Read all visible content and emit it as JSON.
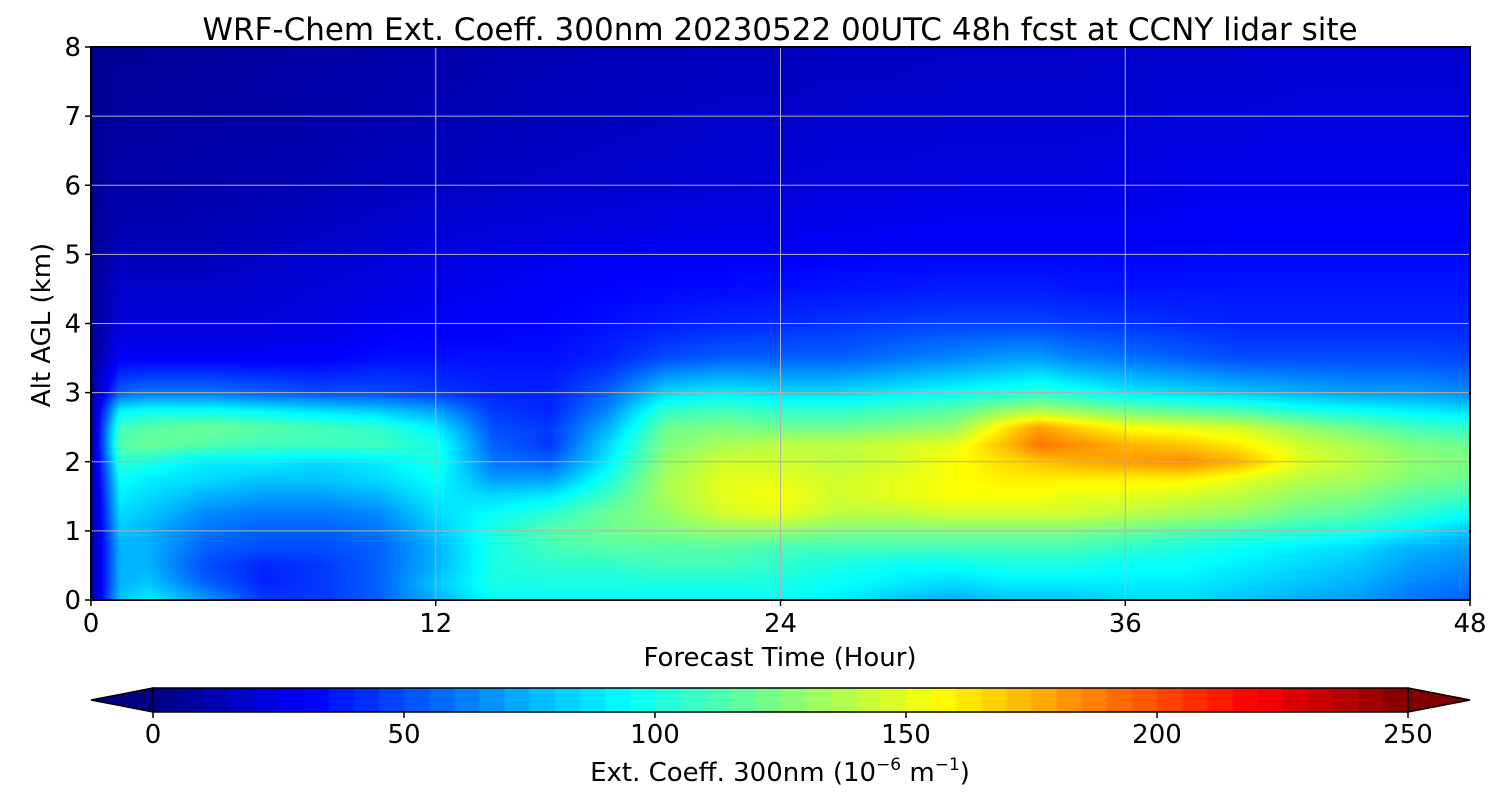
{
  "chart_data": {
    "type": "heatmap",
    "title": "WRF-Chem Ext. Coeff. 300nm  20230522 00UTC 48h fcst at CCNY lidar site",
    "xlabel": "Forecast Time (Hour)",
    "ylabel": "Alt AGL (km)",
    "xlim": [
      0,
      48
    ],
    "ylim": [
      0,
      8
    ],
    "x_ticks": [
      0,
      12,
      24,
      36,
      48
    ],
    "y_ticks": [
      0,
      1,
      2,
      3,
      4,
      5,
      6,
      7,
      8
    ],
    "grid": true,
    "colormap": "jet",
    "colorbar": {
      "label_main": "Ext. Coeff. 300nm  (10",
      "label_exp1": "−6",
      "label_mid": " m",
      "label_exp2": "−1",
      "label_end": ")",
      "range": [
        0,
        250
      ],
      "ticks": [
        0,
        50,
        100,
        150,
        200,
        250
      ],
      "extend": "both",
      "placement": "bottom"
    },
    "z_units": "10^-6 m^-1",
    "x_hours": [
      0,
      1,
      2,
      4,
      6,
      8,
      10,
      12,
      14,
      16,
      18,
      20,
      22,
      24,
      26,
      28,
      30,
      32,
      33,
      34,
      36,
      38,
      40,
      42,
      44,
      46,
      48
    ],
    "y_km": [
      0,
      0.25,
      0.5,
      0.75,
      1.0,
      1.25,
      1.5,
      1.75,
      2.0,
      2.25,
      2.5,
      2.75,
      3.0,
      3.5,
      4.0,
      4.5,
      5.0,
      5.5,
      6.0,
      7.0,
      8.0
    ],
    "z_values": [
      [
        5,
        80,
        90,
        70,
        45,
        45,
        55,
        75,
        95,
        95,
        95,
        95,
        95,
        95,
        90,
        80,
        75,
        80,
        80,
        80,
        85,
        85,
        80,
        75,
        70,
        60,
        55
      ],
      [
        5,
        75,
        80,
        55,
        40,
        45,
        55,
        80,
        100,
        100,
        100,
        100,
        100,
        100,
        95,
        90,
        85,
        90,
        90,
        90,
        90,
        90,
        85,
        80,
        75,
        65,
        60
      ],
      [
        5,
        75,
        75,
        50,
        40,
        45,
        55,
        75,
        100,
        105,
        105,
        110,
        110,
        105,
        100,
        95,
        95,
        100,
        100,
        100,
        95,
        95,
        90,
        85,
        80,
        70,
        65
      ],
      [
        5,
        75,
        75,
        55,
        50,
        50,
        55,
        75,
        100,
        110,
        115,
        115,
        115,
        110,
        110,
        110,
        110,
        110,
        110,
        110,
        105,
        100,
        95,
        90,
        85,
        75,
        70
      ],
      [
        5,
        80,
        75,
        60,
        55,
        55,
        60,
        80,
        100,
        115,
        120,
        125,
        130,
        130,
        125,
        125,
        125,
        125,
        125,
        125,
        120,
        115,
        110,
        105,
        100,
        90,
        80
      ],
      [
        5,
        85,
        80,
        65,
        60,
        60,
        65,
        85,
        95,
        105,
        120,
        130,
        145,
        150,
        140,
        140,
        145,
        145,
        145,
        145,
        140,
        135,
        130,
        120,
        115,
        105,
        95
      ],
      [
        5,
        90,
        85,
        75,
        70,
        70,
        75,
        90,
        85,
        90,
        110,
        135,
        150,
        155,
        145,
        150,
        155,
        155,
        155,
        150,
        150,
        145,
        140,
        130,
        125,
        115,
        110
      ],
      [
        5,
        95,
        90,
        85,
        80,
        80,
        85,
        95,
        70,
        70,
        100,
        135,
        150,
        150,
        145,
        150,
        155,
        160,
        160,
        160,
        160,
        160,
        150,
        140,
        135,
        125,
        120
      ],
      [
        5,
        105,
        100,
        90,
        90,
        85,
        90,
        100,
        60,
        55,
        90,
        130,
        145,
        145,
        140,
        145,
        155,
        165,
        170,
        175,
        180,
        185,
        175,
        150,
        140,
        130,
        125
      ],
      [
        5,
        115,
        120,
        115,
        110,
        110,
        110,
        100,
        55,
        45,
        85,
        125,
        135,
        140,
        140,
        145,
        150,
        175,
        190,
        185,
        175,
        170,
        160,
        145,
        135,
        125,
        120
      ],
      [
        5,
        110,
        115,
        120,
        115,
        110,
        105,
        90,
        50,
        45,
        75,
        120,
        125,
        120,
        120,
        125,
        130,
        165,
        180,
        170,
        155,
        150,
        145,
        130,
        120,
        110,
        105
      ],
      [
        5,
        90,
        95,
        95,
        90,
        85,
        80,
        70,
        45,
        40,
        65,
        105,
        110,
        105,
        105,
        110,
        115,
        130,
        135,
        130,
        120,
        115,
        110,
        100,
        95,
        90,
        85
      ],
      [
        5,
        55,
        60,
        60,
        55,
        50,
        50,
        45,
        40,
        40,
        55,
        85,
        90,
        85,
        85,
        90,
        95,
        100,
        105,
        100,
        90,
        85,
        80,
        75,
        70,
        70,
        65
      ],
      [
        5,
        30,
        30,
        30,
        30,
        30,
        35,
        35,
        35,
        35,
        40,
        50,
        55,
        55,
        55,
        60,
        65,
        70,
        70,
        65,
        60,
        55,
        50,
        50,
        50,
        50,
        48
      ],
      [
        5,
        22,
        22,
        22,
        22,
        24,
        28,
        30,
        30,
        32,
        35,
        38,
        40,
        42,
        44,
        46,
        48,
        48,
        48,
        46,
        44,
        42,
        40,
        40,
        40,
        40,
        40
      ],
      [
        5,
        18,
        18,
        18,
        20,
        22,
        24,
        26,
        28,
        30,
        32,
        33,
        34,
        35,
        36,
        37,
        38,
        38,
        38,
        37,
        36,
        36,
        36,
        36,
        36,
        36,
        36
      ],
      [
        5,
        15,
        15,
        15,
        17,
        19,
        21,
        23,
        25,
        27,
        28,
        29,
        30,
        30,
        31,
        32,
        32,
        32,
        32,
        32,
        32,
        32,
        33,
        33,
        33,
        33,
        33
      ],
      [
        5,
        12,
        12,
        13,
        14,
        16,
        18,
        20,
        21,
        22,
        23,
        24,
        25,
        25,
        26,
        27,
        28,
        28,
        28,
        28,
        28,
        29,
        30,
        30,
        30,
        30,
        30
      ],
      [
        5,
        10,
        10,
        11,
        12,
        13,
        15,
        16,
        17,
        18,
        19,
        20,
        21,
        22,
        23,
        23,
        24,
        24,
        24,
        24,
        25,
        26,
        27,
        27,
        27,
        27,
        27
      ],
      [
        5,
        8,
        8,
        9,
        10,
        11,
        12,
        13,
        14,
        15,
        16,
        17,
        18,
        18,
        19,
        19,
        20,
        20,
        20,
        20,
        21,
        22,
        22,
        23,
        23,
        23,
        23
      ],
      [
        5,
        6,
        6,
        7,
        8,
        9,
        10,
        11,
        12,
        13,
        14,
        14,
        15,
        15,
        16,
        16,
        17,
        17,
        17,
        17,
        18,
        18,
        18,
        19,
        19,
        19,
        19
      ]
    ]
  }
}
